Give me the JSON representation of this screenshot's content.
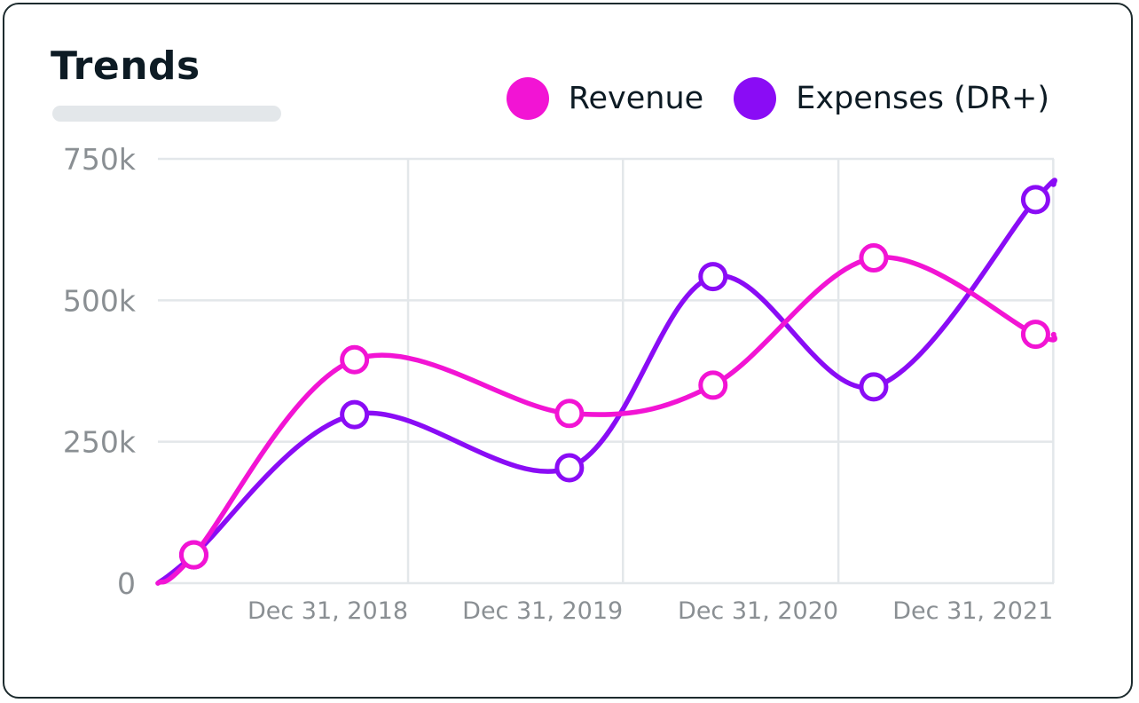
{
  "card": {
    "title": "Trends"
  },
  "colors": {
    "revenue": "#f214d4",
    "expenses": "#8a0cf5",
    "grid": "#e3e7ea",
    "tick": "#8a8f93"
  },
  "chart_data": {
    "type": "line",
    "title": "Trends",
    "xlabel": "",
    "ylabel": "",
    "ylim": [
      0,
      750000
    ],
    "xlim": [
      "2017-11-01",
      "2022-01-01"
    ],
    "x_ticks": [
      "Dec 31, 2018",
      "Dec 31, 2019",
      "Dec 31, 2020",
      "Dec 31, 2021"
    ],
    "y_ticks": [
      "0",
      "250k",
      "500k",
      "750k"
    ],
    "grid": true,
    "legend": "top-right",
    "x": [
      "2018-01-01",
      "2018-10-01",
      "2019-10-01",
      "2020-06-01",
      "2021-03-01",
      "2021-12-01"
    ],
    "series": [
      {
        "name": "Revenue",
        "values": [
          50000,
          395000,
          300000,
          350000,
          575000,
          440000
        ]
      },
      {
        "name": "Expenses (DR+)",
        "values": [
          50000,
          298000,
          204000,
          542000,
          347000,
          678000
        ]
      }
    ]
  }
}
